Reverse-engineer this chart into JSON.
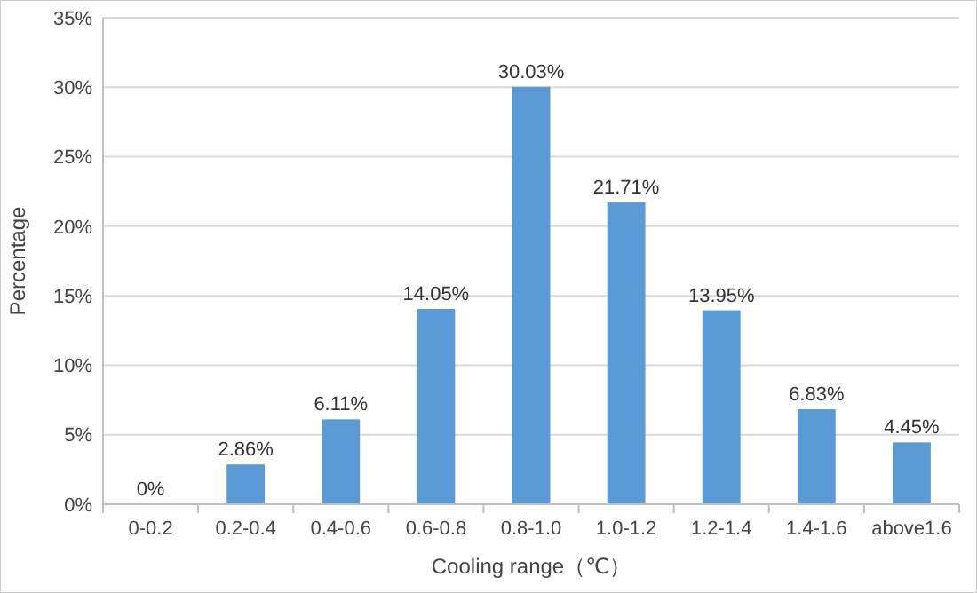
{
  "chart_data": {
    "type": "bar",
    "xlabel": "Cooling range（℃）",
    "ylabel": "Percentage",
    "categories": [
      "0-0.2",
      "0.2-0.4",
      "0.4-0.6",
      "0.6-0.8",
      "0.8-1.0",
      "1.0-1.2",
      "1.2-1.4",
      "1.4-1.6",
      "above1.6"
    ],
    "values": [
      0,
      2.86,
      6.11,
      14.05,
      30.03,
      21.71,
      13.95,
      6.83,
      4.45
    ],
    "value_labels": [
      "0%",
      "2.86%",
      "6.11%",
      "14.05%",
      "30.03%",
      "21.71%",
      "13.95%",
      "6.83%",
      "4.45%"
    ],
    "color": "#5b9bd5",
    "ylim": [
      0,
      35
    ],
    "yticks": [
      {
        "value": 0,
        "label": "0%"
      },
      {
        "value": 5,
        "label": "5%"
      },
      {
        "value": 10,
        "label": "10%"
      },
      {
        "value": 15,
        "label": "15%"
      },
      {
        "value": 20,
        "label": "20%"
      },
      {
        "value": 25,
        "label": "25%"
      },
      {
        "value": 30,
        "label": "30%"
      },
      {
        "value": 35,
        "label": "35%"
      }
    ],
    "grid": "y"
  }
}
